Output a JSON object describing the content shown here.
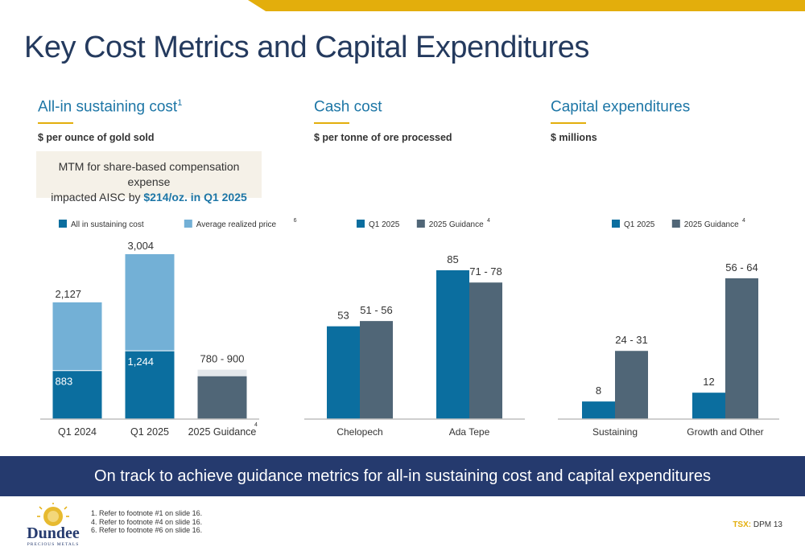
{
  "page": {
    "title": "Key Cost Metrics and Capital Expenditures",
    "banner": "On track to achieve guidance metrics for all-in sustaining cost and capital expenditures",
    "ticker_label": "TSX:",
    "ticker_value": "DPM 13",
    "footnotes": [
      "1. Refer to footnote #1 on slide 16.",
      "4. Refer to footnote #4 on slide 16.",
      "6. Refer to footnote #6 on slide 16."
    ],
    "logo": {
      "name": "Dundee",
      "sub": "PRECIOUS METALS"
    }
  },
  "sections": [
    {
      "heading": "All-in sustaining cost",
      "sup": "1",
      "subhead": "$ per ounce of gold sold"
    },
    {
      "heading": "Cash cost",
      "sup": "",
      "subhead": "$ per tonne of ore processed"
    },
    {
      "heading": "Capital expenditures",
      "sup": "",
      "subhead": "$ millions"
    }
  ],
  "callout": {
    "line1": "MTM for share-based compensation expense",
    "line2_prefix": "impacted AISC by ",
    "line2_highlight": "$214/oz. in Q1 2025"
  },
  "colors": {
    "primary": "#0B6E9F",
    "light": "#73B0D6",
    "guidance": "#506677",
    "range_cap": "#E4E8EC",
    "gold": "#E3AE0C",
    "navy": "#253A6E",
    "title": "#243A5E"
  },
  "chart_data": [
    {
      "type": "bar",
      "title": "All-in sustaining cost",
      "categories": [
        "Q1 2024",
        "Q1 2025",
        "2025 Guidance"
      ],
      "category_sup": [
        "",
        "",
        "4"
      ],
      "legend": [
        {
          "name": "All in sustaining cost",
          "sup": ""
        },
        {
          "name": "Average realized price",
          "sup": "6"
        }
      ],
      "series": [
        {
          "name": "All in sustaining cost",
          "values": [
            883,
            1244,
            null
          ],
          "labels": [
            "883",
            "1,244",
            ""
          ]
        },
        {
          "name": "Average realized price",
          "values": [
            2127,
            3004,
            null
          ],
          "labels": [
            "2,127",
            "3,004",
            ""
          ]
        }
      ],
      "guidance_range": {
        "category": "2025 Guidance",
        "low": 780,
        "high": 900,
        "label": "780 - 900"
      },
      "ylim": [
        0,
        3300
      ]
    },
    {
      "type": "bar",
      "title": "Cash cost",
      "categories": [
        "Chelopech",
        "Ada Tepe"
      ],
      "legend": [
        {
          "name": "Q1 2025",
          "sup": ""
        },
        {
          "name": "2025 Guidance",
          "sup": "4"
        }
      ],
      "series": [
        {
          "name": "Q1 2025",
          "values": [
            53,
            85
          ],
          "labels": [
            "53",
            "85"
          ]
        },
        {
          "name": "2025 Guidance",
          "values": [
            [
              51,
              56
            ],
            [
              71,
              78
            ]
          ],
          "labels": [
            "51 - 56",
            "71 - 78"
          ]
        }
      ],
      "ylim": [
        0,
        92
      ]
    },
    {
      "type": "bar",
      "title": "Capital expenditures",
      "categories": [
        "Sustaining",
        "Growth and Other"
      ],
      "legend": [
        {
          "name": "Q1 2025",
          "sup": ""
        },
        {
          "name": "2025 Guidance",
          "sup": "4"
        }
      ],
      "series": [
        {
          "name": "Q1 2025",
          "values": [
            8,
            12
          ],
          "labels": [
            "8",
            "12"
          ]
        },
        {
          "name": "2025 Guidance",
          "values": [
            [
              24,
              31
            ],
            [
              56,
              64
            ]
          ],
          "labels": [
            "24 - 31",
            "56 - 64"
          ]
        }
      ],
      "ylim": [
        0,
        68
      ]
    }
  ]
}
